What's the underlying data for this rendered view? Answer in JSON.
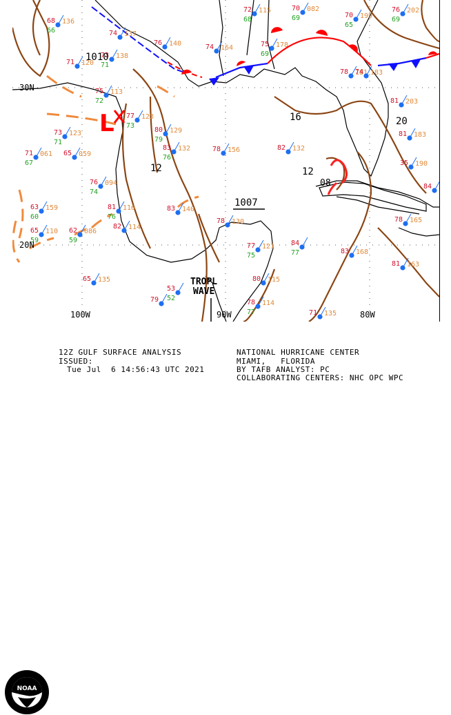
{
  "map": {
    "pressure_labels": {
      "p1010": "1010",
      "p1007": "1007",
      "p16": "16",
      "p20": "20",
      "p12a": "12",
      "p12b": "12",
      "p08": "08"
    },
    "low_symbol": "L",
    "lat_labels": {
      "lat30": "30N",
      "lat20": "20N"
    },
    "lon_labels": {
      "lon100": "100W",
      "lon90": "90W",
      "lon80": "80W"
    },
    "feature_label": {
      "line1": "TROPL",
      "line2": "WAVE"
    },
    "colors": {
      "isobar": "#8b4513",
      "trough": "#f08a3c",
      "cold_front": "#1010ff",
      "warm_front": "#ff0000",
      "coast": "#000000",
      "station": "#1e6ff0",
      "temp": "#d0102a",
      "dew": "#1fa01f",
      "pressure_text": "#e08a3a"
    },
    "stations": [
      {
        "t": "68",
        "d": "66",
        "p": "136"
      },
      {
        "t": "72",
        "d": "68",
        "p": "115"
      },
      {
        "t": "70",
        "d": "69",
        "p": "082"
      },
      {
        "t": "70",
        "d": "65",
        "p": "199"
      },
      {
        "t": "76",
        "d": "69",
        "p": "202"
      },
      {
        "t": "74",
        "d": "",
        "p": "137"
      },
      {
        "t": "76",
        "d": "",
        "p": "140"
      },
      {
        "t": "74",
        "d": "",
        "p": "164"
      },
      {
        "t": "75",
        "d": "69",
        "p": "178"
      },
      {
        "t": "78",
        "d": "",
        "p": "181"
      },
      {
        "t": "74",
        "d": "",
        "p": "183"
      },
      {
        "t": "71",
        "d": "",
        "p": "120"
      },
      {
        "t": "73",
        "d": "71",
        "p": "138"
      },
      {
        "t": "75",
        "d": "72",
        "p": "113"
      },
      {
        "t": "77",
        "d": "73",
        "p": "123"
      },
      {
        "t": "80",
        "d": "79",
        "p": "129"
      },
      {
        "t": "73",
        "d": "71",
        "p": "123"
      },
      {
        "t": "71",
        "d": "67",
        "p": "061"
      },
      {
        "t": "65",
        "d": "",
        "p": "059"
      },
      {
        "t": "83",
        "d": "76",
        "p": "132"
      },
      {
        "t": "78",
        "d": "",
        "p": "156"
      },
      {
        "t": "82",
        "d": "",
        "p": "132"
      },
      {
        "t": "81",
        "d": "",
        "p": "203"
      },
      {
        "t": "76",
        "d": "74",
        "p": "094"
      },
      {
        "t": "63",
        "d": "60",
        "p": "159"
      },
      {
        "t": "81",
        "d": "76",
        "p": "116"
      },
      {
        "t": "83",
        "d": "",
        "p": "140"
      },
      {
        "t": "65",
        "d": "59",
        "p": "110"
      },
      {
        "t": "62",
        "d": "59",
        "p": "086"
      },
      {
        "t": "82",
        "d": "",
        "p": "114"
      },
      {
        "t": "78",
        "d": "",
        "p": "130"
      },
      {
        "t": "77",
        "d": "75",
        "p": "121"
      },
      {
        "t": "84",
        "d": "77",
        "p": ""
      },
      {
        "t": "83",
        "d": "",
        "p": "168"
      },
      {
        "t": "81",
        "d": "",
        "p": "163"
      },
      {
        "t": "78",
        "d": "",
        "p": "165"
      },
      {
        "t": "35",
        "d": "",
        "p": "190"
      },
      {
        "t": "84",
        "d": "",
        "p": "252"
      },
      {
        "t": "65",
        "d": "",
        "p": "135"
      },
      {
        "t": "53",
        "d": "52",
        "p": ""
      },
      {
        "t": "79",
        "d": "",
        "p": ""
      },
      {
        "t": "80",
        "d": "",
        "p": "115"
      },
      {
        "t": "78",
        "d": "77",
        "p": "114"
      },
      {
        "t": "71",
        "d": "",
        "p": "135"
      },
      {
        "t": "81",
        "d": "",
        "p": "183"
      }
    ]
  },
  "footer": {
    "title": "12Z GULF SURFACE ANALYSIS",
    "issued_label": "ISSUED:",
    "issued_time": "Tue Jul  6 14:56:43 UTC 2021",
    "center": "NATIONAL HURRICANE CENTER",
    "city": "MIAMI,   FLORIDA",
    "analyst": "BY TAFB ANALYST: PC",
    "collab": "COLLABORATING CENTERS: NHC OPC WPC",
    "logo_text": "NOAA",
    "logo_ring": "NATIONAL OCEANIC AND ATMOSPHERIC ADMINISTRATION"
  }
}
